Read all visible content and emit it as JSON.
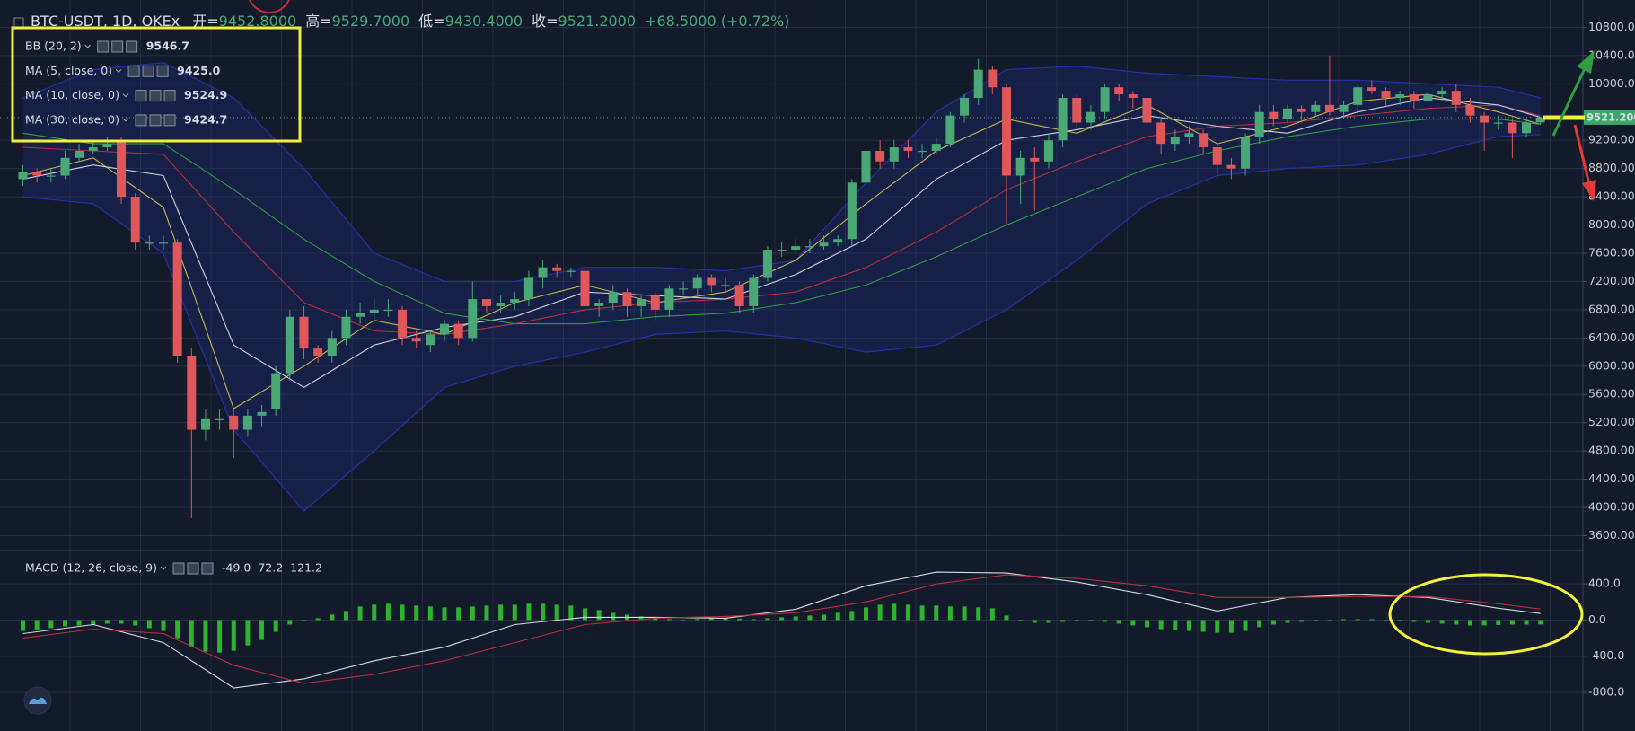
{
  "header": {
    "open_label": "开=",
    "open": "9452.8000",
    "high_label": "高=",
    "high": "9529.7000",
    "low_label": "低=",
    "low": "9430.4000",
    "close_label": "收=",
    "close": "9521.2000",
    "change": "+68.5000 (+0.72%)"
  },
  "price_tag": "9521.2000",
  "chart_data": [
    {
      "type": "candlestick",
      "title": "BTC-USDT, 1D, OKEx",
      "up_color": "#4aa877",
      "down_color": "#e0575b",
      "open": [
        8650,
        8750,
        8700,
        8700,
        8950,
        9050,
        9100,
        9200,
        8400,
        7750,
        7750,
        7750,
        6150,
        5100,
        5250,
        5300,
        5100,
        5300,
        5400,
        5900,
        6700,
        6250,
        6150,
        6400,
        6700,
        6750,
        6800,
        6800,
        6400,
        6300,
        6450,
        6600,
        6400,
        6950,
        6850,
        6900,
        6950,
        7250,
        7400,
        7350,
        7350,
        6850,
        6900,
        7050,
        6850,
        7000,
        6800,
        7100,
        7100,
        7250,
        7150,
        7150,
        6850,
        7250,
        7650,
        7650,
        7700,
        7700,
        7750,
        7800,
        8600,
        9050,
        8900,
        9100,
        9050,
        9050,
        9150,
        9550,
        9800,
        10200,
        9950,
        8700,
        8950,
        8900,
        9200,
        9800,
        9450,
        9600,
        9950,
        9850,
        9800,
        9450,
        9150,
        9250,
        9300,
        9100,
        8850,
        8800,
        9250,
        9600,
        9500,
        9650,
        9600,
        9700,
        9600,
        9700,
        9950,
        9900,
        9800,
        9850,
        9750,
        9850,
        9900,
        9700,
        9550,
        9450,
        9450,
        9300,
        9452.8
      ],
      "high": [
        8850,
        8800,
        8800,
        9050,
        9150,
        9200,
        9250,
        9250,
        8450,
        7850,
        7850,
        7800,
        6250,
        5400,
        5400,
        5400,
        5400,
        5450,
        6000,
        6800,
        6850,
        6300,
        6500,
        6800,
        6900,
        6950,
        6950,
        6850,
        6500,
        6500,
        6650,
        6650,
        7200,
        6950,
        7000,
        7050,
        7350,
        7500,
        7450,
        7400,
        7400,
        6950,
        7150,
        7100,
        7000,
        7050,
        7150,
        7200,
        7300,
        7300,
        7250,
        7200,
        7300,
        7700,
        7750,
        7800,
        7800,
        7850,
        7850,
        8650,
        9600,
        9200,
        9200,
        9200,
        9150,
        9250,
        9600,
        9850,
        10350,
        10250,
        10000,
        9050,
        9100,
        9300,
        9850,
        9850,
        9700,
        10000,
        10000,
        9900,
        9850,
        9500,
        9350,
        9400,
        9350,
        9150,
        8950,
        9300,
        9700,
        9700,
        9700,
        9700,
        9750,
        10400,
        9750,
        10000,
        10050,
        9950,
        9900,
        9900,
        9900,
        9950,
        10000,
        9800,
        9600,
        9550,
        9500,
        9500,
        9529.7
      ],
      "low": [
        8550,
        8600,
        8600,
        8650,
        8900,
        9000,
        9050,
        8300,
        7650,
        7650,
        7650,
        6050,
        3850,
        4950,
        5100,
        4700,
        5000,
        5150,
        5300,
        5800,
        6100,
        6050,
        6050,
        6300,
        6600,
        6650,
        6700,
        6300,
        6250,
        6200,
        6350,
        6300,
        6350,
        6750,
        6750,
        6800,
        6850,
        7100,
        7250,
        7250,
        6750,
        6700,
        6800,
        6700,
        6700,
        6650,
        6700,
        7000,
        7000,
        7050,
        7050,
        6750,
        6750,
        7200,
        7550,
        7600,
        7600,
        7650,
        7700,
        7700,
        8500,
        8800,
        8800,
        8950,
        8950,
        9000,
        9100,
        9450,
        9700,
        9850,
        8000,
        8300,
        8200,
        8800,
        9100,
        9350,
        9350,
        9500,
        9750,
        9650,
        9300,
        9000,
        9050,
        9150,
        9000,
        8700,
        8650,
        8700,
        9150,
        9400,
        9450,
        9450,
        9550,
        9550,
        9500,
        9600,
        9850,
        9700,
        9700,
        9650,
        9700,
        9750,
        9600,
        9450,
        9050,
        9350,
        8950,
        9250,
        9430.4
      ],
      "close": [
        8750,
        8700,
        8700,
        8950,
        9050,
        9100,
        9150,
        8400,
        7750,
        7750,
        7750,
        6150,
        5100,
        5250,
        5250,
        5100,
        5300,
        5350,
        5900,
        6700,
        6250,
        6150,
        6400,
        6700,
        6750,
        6800,
        6800,
        6400,
        6350,
        6450,
        6600,
        6400,
        6950,
        6850,
        6900,
        6950,
        7250,
        7400,
        7350,
        7350,
        6850,
        6900,
        7050,
        6850,
        6950,
        6800,
        7100,
        7100,
        7250,
        7150,
        7150,
        6850,
        7250,
        7650,
        7650,
        7700,
        7700,
        7750,
        7800,
        8600,
        9050,
        8900,
        9100,
        9050,
        9050,
        9150,
        9550,
        9800,
        10200,
        9950,
        8700,
        8950,
        8900,
        9200,
        9800,
        9450,
        9600,
        9950,
        9850,
        9800,
        9450,
        9150,
        9250,
        9300,
        9100,
        8850,
        8800,
        9250,
        9600,
        9500,
        9650,
        9600,
        9700,
        9600,
        9700,
        9950,
        9900,
        9800,
        9850,
        9750,
        9850,
        9900,
        9700,
        9550,
        9450,
        9450,
        9300,
        9450,
        9521.2
      ],
      "series": [
        {
          "name": "BB (20, 2)",
          "color": "#b3303c",
          "band_color": "#2530a8",
          "label_color": "#e53935",
          "last_label": "9546.7",
          "x": [
            0,
            5,
            10,
            15,
            20,
            25,
            30,
            35,
            40,
            45,
            50,
            55,
            60,
            65,
            70,
            75,
            80,
            85,
            90,
            95,
            100,
            105,
            108
          ],
          "values": [
            9100,
            9050,
            9000,
            7900,
            6900,
            6500,
            6450,
            6600,
            6800,
            6900,
            6950,
            7050,
            7400,
            7900,
            8500,
            8900,
            9250,
            9400,
            9450,
            9550,
            9650,
            9700,
            9546.7
          ],
          "upper": [
            9800,
            10200,
            10300,
            9800,
            8800,
            7600,
            7200,
            7200,
            7400,
            7400,
            7350,
            7500,
            8600,
            9600,
            10200,
            10250,
            10150,
            10100,
            10050,
            10050,
            10000,
            9950,
            9800
          ],
          "lower": [
            8400,
            8300,
            7600,
            5100,
            3950,
            4800,
            5700,
            6000,
            6200,
            6450,
            6500,
            6400,
            6200,
            6300,
            6800,
            7500,
            8300,
            8700,
            8800,
            8850,
            9000,
            9250,
            9280
          ]
        },
        {
          "name": "MA (5, close, 0)",
          "color": "#c9b84a",
          "label_color": "#f4ee3c",
          "last_label": "9425.0",
          "x": [
            0,
            5,
            10,
            15,
            20,
            25,
            30,
            35,
            40,
            45,
            50,
            55,
            60,
            65,
            70,
            75,
            80,
            85,
            90,
            95,
            100,
            105,
            108
          ],
          "values": [
            8700,
            8950,
            8250,
            5400,
            6000,
            6650,
            6450,
            6900,
            7150,
            6900,
            7050,
            7500,
            8300,
            9050,
            9500,
            9300,
            9700,
            9150,
            9400,
            9750,
            9850,
            9600,
            9425
          ]
        },
        {
          "name": "MA (10, close, 0)",
          "color": "#cfd3dc",
          "label_color": "#ffffff",
          "last_label": "9524.9",
          "x": [
            0,
            5,
            10,
            15,
            20,
            25,
            30,
            35,
            40,
            45,
            50,
            55,
            60,
            65,
            70,
            75,
            80,
            85,
            90,
            95,
            100,
            105,
            108
          ],
          "values": [
            8650,
            8850,
            8700,
            6300,
            5700,
            6300,
            6550,
            6700,
            7050,
            7000,
            6950,
            7300,
            7800,
            8650,
            9200,
            9350,
            9550,
            9400,
            9300,
            9600,
            9800,
            9700,
            9524.9
          ]
        },
        {
          "name": "MA (30, close, 0)",
          "color": "#2e9e3e",
          "label_color": "#4caf50",
          "last_label": "9424.7",
          "x": [
            0,
            5,
            10,
            15,
            20,
            25,
            30,
            35,
            40,
            45,
            50,
            55,
            60,
            65,
            70,
            75,
            80,
            85,
            90,
            95,
            100,
            105,
            108
          ],
          "values": [
            9300,
            9150,
            9150,
            8500,
            7800,
            7200,
            6750,
            6600,
            6600,
            6700,
            6750,
            6900,
            7150,
            7550,
            8000,
            8400,
            8800,
            9050,
            9250,
            9400,
            9500,
            9500,
            9424.7
          ]
        }
      ],
      "ylim": [
        3390,
        11110
      ],
      "yticks": [
        {
          "value": 3600,
          "label": "3600.000"
        },
        {
          "value": 4000,
          "label": "4000.000"
        },
        {
          "value": 4400,
          "label": "4400.000"
        },
        {
          "value": 4800,
          "label": "4800.000"
        },
        {
          "value": 5200,
          "label": "5200.000"
        },
        {
          "value": 5600,
          "label": "5600.000"
        },
        {
          "value": 6000,
          "label": "6000.000"
        },
        {
          "value": 6400,
          "label": "6400.000"
        },
        {
          "value": 6800,
          "label": "6800.000"
        },
        {
          "value": 7200,
          "label": "7200.000"
        },
        {
          "value": 7600,
          "label": "7600.000"
        },
        {
          "value": 8000,
          "label": "8000.000"
        },
        {
          "value": 8400,
          "label": "8400.000"
        },
        {
          "value": 8800,
          "label": "8800.000"
        },
        {
          "value": 9200,
          "label": "9200.000"
        },
        {
          "value": 10000,
          "label": "10000.000"
        },
        {
          "value": 10400,
          "label": "10400.000"
        },
        {
          "value": 10800,
          "label": "10800.000"
        }
      ],
      "grid": true
    },
    {
      "type": "macd",
      "name": "MACD (12, 26, close, 9)",
      "histogram": {
        "color": "#2db32d",
        "label_color": "#2db32d",
        "last_label": "-49.0",
        "values": [
          -120,
          -110,
          -90,
          -70,
          -60,
          -50,
          -40,
          -40,
          -60,
          -90,
          -120,
          -200,
          -300,
          -350,
          -360,
          -340,
          -280,
          -220,
          -130,
          -50,
          0,
          20,
          60,
          100,
          150,
          170,
          180,
          170,
          160,
          150,
          140,
          140,
          150,
          160,
          170,
          170,
          180,
          180,
          170,
          160,
          130,
          110,
          80,
          60,
          40,
          20,
          10,
          0,
          10,
          20,
          20,
          15,
          10,
          20,
          30,
          40,
          50,
          60,
          80,
          100,
          140,
          170,
          180,
          170,
          160,
          160,
          150,
          150,
          140,
          130,
          50,
          -10,
          -30,
          -30,
          -20,
          -10,
          -10,
          -20,
          -40,
          -60,
          -80,
          -100,
          -110,
          -120,
          -130,
          -140,
          -140,
          -120,
          -80,
          -50,
          -30,
          -20,
          -10,
          0,
          10,
          10,
          10,
          0,
          -10,
          -20,
          -30,
          -40,
          -50,
          -60,
          -60,
          -55,
          -50,
          -50,
          -49
        ]
      },
      "series": [
        {
          "color": "#d8dbe2",
          "label_color": "#ffffff",
          "last_label": "72.2",
          "x": [
            0,
            5,
            10,
            15,
            20,
            25,
            30,
            35,
            40,
            45,
            50,
            55,
            60,
            65,
            70,
            75,
            80,
            85,
            90,
            95,
            100,
            105,
            108
          ],
          "values": [
            -150,
            -50,
            -250,
            -750,
            -650,
            -450,
            -300,
            -50,
            30,
            30,
            20,
            120,
            380,
            530,
            520,
            420,
            280,
            100,
            250,
            280,
            250,
            130,
            72.2
          ]
        },
        {
          "color": "#b8303a",
          "label_color": "#e53935",
          "last_label": "121.2",
          "x": [
            0,
            5,
            10,
            15,
            20,
            25,
            30,
            35,
            40,
            45,
            50,
            55,
            60,
            65,
            70,
            75,
            80,
            85,
            90,
            95,
            100,
            105,
            108
          ],
          "values": [
            -200,
            -100,
            -150,
            -500,
            -700,
            -600,
            -450,
            -250,
            -50,
            20,
            40,
            80,
            200,
            400,
            500,
            460,
            380,
            250,
            250,
            260,
            260,
            180,
            121.2
          ]
        }
      ],
      "ylim": [
        -1227,
        769
      ],
      "yticks": [
        {
          "value": -800,
          "label": "-800.0"
        },
        {
          "value": -400,
          "label": "-400.0"
        },
        {
          "value": 0,
          "label": "0.0"
        },
        {
          "value": 400,
          "label": "400.0"
        }
      ],
      "grid": true
    }
  ]
}
